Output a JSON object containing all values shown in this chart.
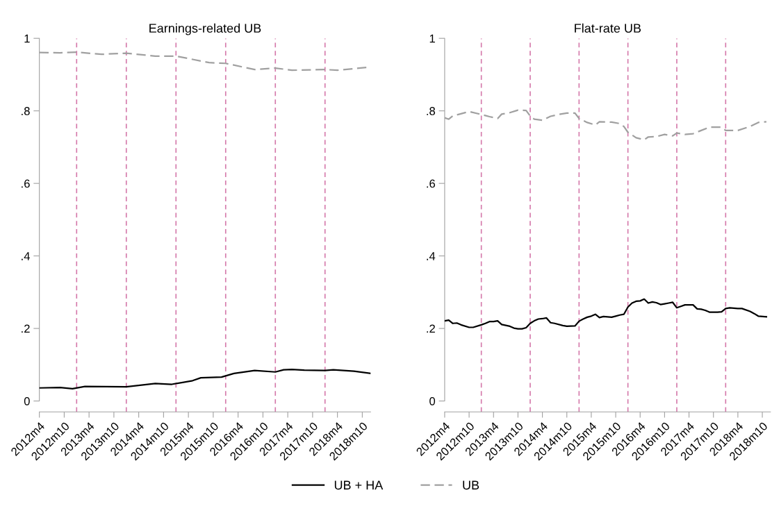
{
  "chart_data": [
    {
      "type": "line",
      "title": "Earnings-related UB",
      "xlim": [
        "2012-04",
        "2018-12"
      ],
      "ylim": [
        -0.03,
        1.0
      ],
      "xticks": [
        {
          "value": "2012-04",
          "label": "2012m4"
        },
        {
          "value": "2012-10",
          "label": "2012m10"
        },
        {
          "value": "2013-04",
          "label": "2013m4"
        },
        {
          "value": "2013-10",
          "label": "2013m10"
        },
        {
          "value": "2014-04",
          "label": "2014m4"
        },
        {
          "value": "2014-10",
          "label": "2014m10"
        },
        {
          "value": "2015-04",
          "label": "2015m4"
        },
        {
          "value": "2015-10",
          "label": "2015m10"
        },
        {
          "value": "2016-04",
          "label": "2016m4"
        },
        {
          "value": "2016-10",
          "label": "2016m10"
        },
        {
          "value": "2017-04",
          "label": "2017m4"
        },
        {
          "value": "2017-10",
          "label": "2017m10"
        },
        {
          "value": "2018-04",
          "label": "2018m4"
        },
        {
          "value": "2018-10",
          "label": "2018m10"
        }
      ],
      "yticks": [
        {
          "value": 0,
          "label": "0"
        },
        {
          "value": 0.2,
          "label": ".2"
        },
        {
          "value": 0.4,
          "label": ".4"
        },
        {
          "value": 0.6,
          "label": ".6"
        },
        {
          "value": 0.8,
          "label": ".8"
        },
        {
          "value": 1,
          "label": "1"
        }
      ],
      "legend": "bottom",
      "ref_lines": [
        {
          "axis": "x",
          "value": "2013-01",
          "color": "#d57aab",
          "line_style": "dashed"
        },
        {
          "axis": "x",
          "value": "2014-01",
          "color": "#d57aab",
          "line_style": "dashed"
        },
        {
          "axis": "x",
          "value": "2015-01",
          "color": "#d57aab",
          "line_style": "dashed"
        },
        {
          "axis": "x",
          "value": "2016-01",
          "color": "#d57aab",
          "line_style": "dashed"
        },
        {
          "axis": "x",
          "value": "2017-01",
          "color": "#d57aab",
          "line_style": "dashed"
        },
        {
          "axis": "x",
          "value": "2018-01",
          "color": "#d57aab",
          "line_style": "dashed"
        }
      ],
      "series": [
        {
          "name": "UB + HA",
          "color": "#000000",
          "line_style": "solid",
          "x": [
            "2012-04",
            "2012-09",
            "2012-12",
            "2013-03",
            "2014-01",
            "2014-08",
            "2014-12",
            "2015-05",
            "2015-07",
            "2015-12",
            "2016-03",
            "2016-08",
            "2017-01",
            "2017-03",
            "2017-05",
            "2017-08",
            "2018-01",
            "2018-03",
            "2018-08",
            "2018-12"
          ],
          "values": [
            0.036,
            0.037,
            0.034,
            0.04,
            0.039,
            0.048,
            0.046,
            0.056,
            0.064,
            0.066,
            0.076,
            0.084,
            0.08,
            0.086,
            0.087,
            0.085,
            0.084,
            0.086,
            0.082,
            0.076
          ]
        },
        {
          "name": "UB",
          "color": "#a0a0a0",
          "line_style": "dashed",
          "x": [
            "2012-04",
            "2012-09",
            "2013-01",
            "2013-07",
            "2014-01",
            "2014-08",
            "2015-01",
            "2015-09",
            "2016-01",
            "2016-08",
            "2017-01",
            "2017-05",
            "2018-01",
            "2018-04",
            "2018-12"
          ],
          "values": [
            0.961,
            0.96,
            0.962,
            0.956,
            0.959,
            0.951,
            0.951,
            0.933,
            0.931,
            0.914,
            0.918,
            0.912,
            0.914,
            0.912,
            0.921
          ]
        }
      ]
    },
    {
      "type": "line",
      "title": "Flat-rate UB",
      "xlim": [
        "2012-04",
        "2018-12"
      ],
      "ylim": [
        -0.03,
        1.0
      ],
      "xticks": [
        {
          "value": "2012-04",
          "label": "2012m4"
        },
        {
          "value": "2012-10",
          "label": "2012m10"
        },
        {
          "value": "2013-04",
          "label": "2013m4"
        },
        {
          "value": "2013-10",
          "label": "2013m10"
        },
        {
          "value": "2014-04",
          "label": "2014m4"
        },
        {
          "value": "2014-10",
          "label": "2014m10"
        },
        {
          "value": "2015-04",
          "label": "2015m4"
        },
        {
          "value": "2015-10",
          "label": "2015m10"
        },
        {
          "value": "2016-04",
          "label": "2016m4"
        },
        {
          "value": "2016-10",
          "label": "2016m10"
        },
        {
          "value": "2017-04",
          "label": "2017m4"
        },
        {
          "value": "2017-10",
          "label": "2017m10"
        },
        {
          "value": "2018-04",
          "label": "2018m4"
        },
        {
          "value": "2018-10",
          "label": "2018m10"
        }
      ],
      "yticks": [
        {
          "value": 0,
          "label": "0"
        },
        {
          "value": 0.2,
          "label": ".2"
        },
        {
          "value": 0.4,
          "label": ".4"
        },
        {
          "value": 0.6,
          "label": ".6"
        },
        {
          "value": 0.8,
          "label": ".8"
        },
        {
          "value": 1,
          "label": "1"
        }
      ],
      "legend": "bottom",
      "ref_lines": [
        {
          "axis": "x",
          "value": "2013-01",
          "color": "#d57aab",
          "line_style": "dashed"
        },
        {
          "axis": "x",
          "value": "2014-01",
          "color": "#d57aab",
          "line_style": "dashed"
        },
        {
          "axis": "x",
          "value": "2015-01",
          "color": "#d57aab",
          "line_style": "dashed"
        },
        {
          "axis": "x",
          "value": "2016-01",
          "color": "#d57aab",
          "line_style": "dashed"
        },
        {
          "axis": "x",
          "value": "2017-01",
          "color": "#d57aab",
          "line_style": "dashed"
        },
        {
          "axis": "x",
          "value": "2018-01",
          "color": "#d57aab",
          "line_style": "dashed"
        }
      ],
      "series": [
        {
          "name": "UB + HA",
          "color": "#000000",
          "line_style": "solid",
          "x": [
            "2012-04",
            "2012-05",
            "2012-06",
            "2012-07",
            "2012-08",
            "2012-10",
            "2012-11",
            "2013-01",
            "2013-02",
            "2013-03",
            "2013-04",
            "2013-05",
            "2013-06",
            "2013-08",
            "2013-09",
            "2013-10",
            "2013-11",
            "2013-12",
            "2014-01",
            "2014-02",
            "2014-03",
            "2014-04",
            "2014-05",
            "2014-06",
            "2014-07",
            "2014-09",
            "2014-10",
            "2014-12",
            "2015-01",
            "2015-02",
            "2015-03",
            "2015-04",
            "2015-05",
            "2015-06",
            "2015-07",
            "2015-09",
            "2015-10",
            "2015-11",
            "2015-12",
            "2016-01",
            "2016-02",
            "2016-03",
            "2016-04",
            "2016-05",
            "2016-06",
            "2016-07",
            "2016-08",
            "2016-09",
            "2016-10",
            "2016-11",
            "2016-12",
            "2017-01",
            "2017-02",
            "2017-03",
            "2017-05",
            "2017-06",
            "2017-07",
            "2017-08",
            "2017-09",
            "2017-11",
            "2017-12",
            "2018-01",
            "2018-02",
            "2018-04",
            "2018-05",
            "2018-07",
            "2018-08",
            "2018-09",
            "2018-11"
          ],
          "values": [
            0.221,
            0.223,
            0.214,
            0.215,
            0.21,
            0.203,
            0.203,
            0.21,
            0.214,
            0.219,
            0.219,
            0.221,
            0.211,
            0.206,
            0.201,
            0.199,
            0.199,
            0.202,
            0.214,
            0.221,
            0.226,
            0.227,
            0.229,
            0.216,
            0.214,
            0.208,
            0.206,
            0.207,
            0.22,
            0.226,
            0.231,
            0.234,
            0.239,
            0.23,
            0.233,
            0.231,
            0.234,
            0.237,
            0.239,
            0.259,
            0.27,
            0.275,
            0.276,
            0.281,
            0.27,
            0.273,
            0.271,
            0.266,
            0.268,
            0.27,
            0.272,
            0.257,
            0.261,
            0.265,
            0.265,
            0.254,
            0.253,
            0.25,
            0.245,
            0.245,
            0.246,
            0.255,
            0.257,
            0.255,
            0.255,
            0.247,
            0.241,
            0.234,
            0.232
          ]
        },
        {
          "name": "UB",
          "color": "#a0a0a0",
          "line_style": "dashed",
          "x": [
            "2012-04",
            "2012-05",
            "2012-06",
            "2012-08",
            "2012-10",
            "2013-01",
            "2013-03",
            "2013-05",
            "2013-06",
            "2013-08",
            "2013-10",
            "2013-12",
            "2014-01",
            "2014-02",
            "2014-04",
            "2014-06",
            "2014-08",
            "2014-10",
            "2014-12",
            "2015-01",
            "2015-03",
            "2015-05",
            "2015-06",
            "2015-09",
            "2015-11",
            "2015-12",
            "2016-01",
            "2016-03",
            "2016-05",
            "2016-06",
            "2016-08",
            "2016-10",
            "2016-12",
            "2017-01",
            "2017-03",
            "2017-05",
            "2017-07",
            "2017-09",
            "2017-12",
            "2018-01",
            "2018-04",
            "2018-07",
            "2018-09",
            "2018-11"
          ],
          "values": [
            0.781,
            0.777,
            0.786,
            0.792,
            0.798,
            0.79,
            0.784,
            0.779,
            0.791,
            0.795,
            0.802,
            0.801,
            0.786,
            0.777,
            0.774,
            0.785,
            0.79,
            0.794,
            0.794,
            0.779,
            0.768,
            0.761,
            0.77,
            0.769,
            0.765,
            0.757,
            0.741,
            0.726,
            0.72,
            0.728,
            0.729,
            0.735,
            0.731,
            0.739,
            0.735,
            0.737,
            0.746,
            0.755,
            0.755,
            0.746,
            0.746,
            0.757,
            0.768,
            0.77
          ]
        }
      ]
    }
  ]
}
